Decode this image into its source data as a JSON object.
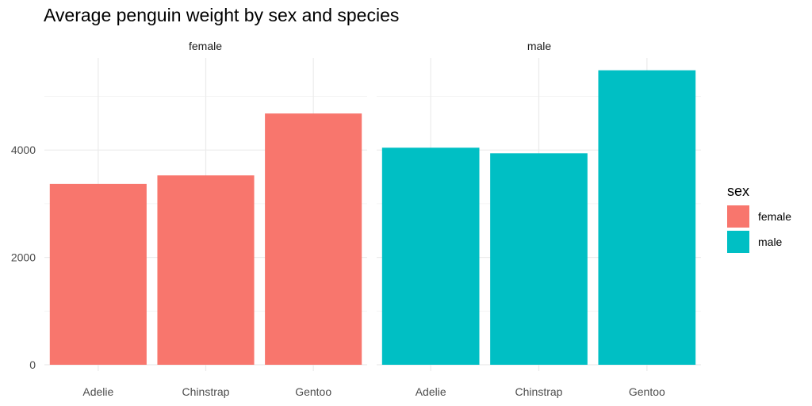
{
  "chart_data": {
    "type": "bar",
    "title": "Average penguin weight by sex and species",
    "facets": [
      "female",
      "male"
    ],
    "categories": [
      "Adelie",
      "Chinstrap",
      "Gentoo"
    ],
    "series": [
      {
        "name": "female",
        "facet": "female",
        "color": "#F8766D",
        "values": [
          3369,
          3527,
          4680
        ]
      },
      {
        "name": "male",
        "facet": "male",
        "color": "#00BFC4",
        "values": [
          4043,
          3939,
          5485
        ]
      }
    ],
    "xlabel": "",
    "ylabel": "",
    "ylim": [
      0,
      5760
    ],
    "y_ticks": [
      "0",
      "2000",
      "4000"
    ],
    "y_tick_values": [
      0,
      2000,
      4000
    ],
    "y_minor_values": [
      1000,
      3000,
      5000
    ],
    "grid": true,
    "legend": {
      "title": "sex",
      "position": "right",
      "entries": [
        {
          "label": "female",
          "color": "#F8766D"
        },
        {
          "label": "male",
          "color": "#00BFC4"
        }
      ]
    }
  }
}
